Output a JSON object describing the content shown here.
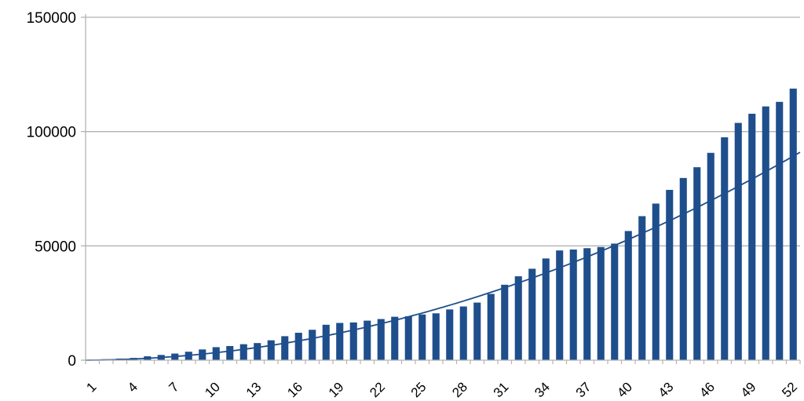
{
  "chart_data": {
    "type": "bar",
    "title": "",
    "xlabel": "",
    "ylabel": "",
    "ylim": [
      0,
      150000
    ],
    "yticks": [
      0,
      50000,
      100000,
      150000
    ],
    "ytick_labels": [
      "0",
      "50000",
      "100000",
      "150000"
    ],
    "xtick_labels": [
      "1",
      "4",
      "7",
      "10",
      "13",
      "16",
      "19",
      "22",
      "25",
      "28",
      "31",
      "34",
      "37",
      "40",
      "43",
      "46",
      "49",
      "52"
    ],
    "x": [
      1,
      2,
      3,
      4,
      5,
      6,
      7,
      8,
      9,
      10,
      11,
      12,
      13,
      14,
      15,
      16,
      17,
      18,
      19,
      20,
      21,
      22,
      23,
      24,
      25,
      26,
      27,
      28,
      29,
      30,
      31,
      32,
      33,
      34,
      35,
      36,
      37,
      38,
      39,
      40,
      41,
      42,
      43,
      44,
      45,
      46,
      47,
      48,
      49,
      50,
      51,
      52
    ],
    "values": [
      150,
      400,
      700,
      1000,
      1700,
      2300,
      2900,
      3700,
      4700,
      5700,
      6200,
      7000,
      7500,
      8700,
      10500,
      12000,
      13300,
      15500,
      16300,
      16500,
      17300,
      18000,
      19000,
      19200,
      20000,
      20500,
      22200,
      23500,
      25200,
      29000,
      33000,
      36700,
      40000,
      44500,
      48000,
      48400,
      49000,
      49500,
      51000,
      56500,
      63000,
      68500,
      74500,
      79700,
      84400,
      90700,
      97500,
      103800,
      107800,
      111000,
      113000,
      118800
    ],
    "trendline": {
      "type": "polynomial",
      "description": "quadratic trend",
      "coefficients": [
        0,
        0,
        33
      ]
    },
    "grid": true,
    "legend": "none",
    "bar_color": "#1f4e8c",
    "line_color": "#1f4e8c"
  }
}
